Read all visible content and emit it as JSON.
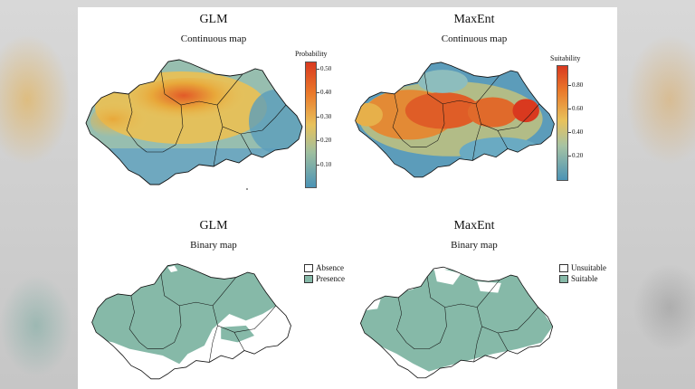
{
  "colors": {
    "presence": "#86b9a8",
    "absence": "#ffffff",
    "border": "#111111",
    "continuous_low": "#4b93b5",
    "continuous_mid": "#e8c25c",
    "continuous_high": "#d9391f"
  },
  "panels": [
    {
      "title": "GLM",
      "subtitle": "Continuous map",
      "kind": "continuous",
      "legend": {
        "title": "Probability",
        "ticks": [
          "0.50",
          "0.40",
          "0.30",
          "0.20",
          "0.10"
        ],
        "range": [
          0.03,
          0.53
        ]
      }
    },
    {
      "title": "MaxEnt",
      "subtitle": "Continuous map",
      "kind": "continuous",
      "legend": {
        "title": "Suitability",
        "ticks": [
          "0.80",
          "0.60",
          "0.40",
          "0.20"
        ],
        "range": [
          0.02,
          0.97
        ]
      }
    },
    {
      "title": "GLM",
      "subtitle": "Binary map",
      "kind": "binary",
      "legend": {
        "items": [
          "Absence",
          "Presence"
        ]
      }
    },
    {
      "title": "MaxEnt",
      "subtitle": "Binary map",
      "kind": "binary",
      "legend": {
        "items": [
          "Unsuitable",
          "Suitable"
        ]
      }
    }
  ]
}
